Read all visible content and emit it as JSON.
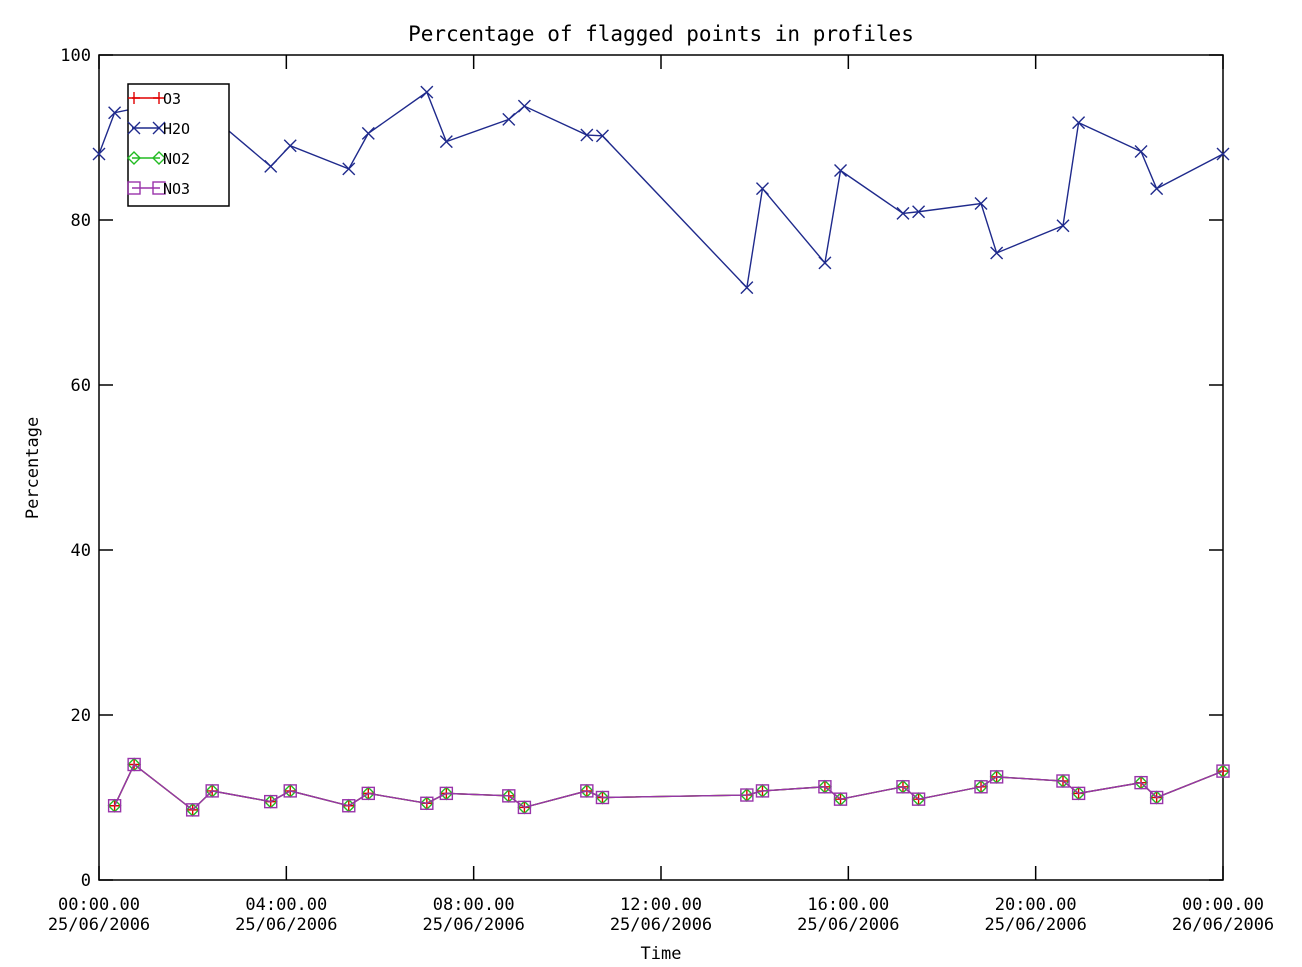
{
  "chart_data": {
    "type": "line",
    "title": "Percentage of flagged points in profiles",
    "xlabel": "Time",
    "ylabel": "Percentage",
    "xlim": [
      "2006-06-25T00:00",
      "2006-06-26T00:00"
    ],
    "ylim": [
      0,
      100
    ],
    "yticks": [
      0,
      20,
      40,
      60,
      80,
      100
    ],
    "xticks": [
      {
        "time": "00:00.00",
        "date": "25/06/2006",
        "value": "2006-06-25T00:00"
      },
      {
        "time": "04:00.00",
        "date": "25/06/2006",
        "value": "2006-06-25T04:00"
      },
      {
        "time": "08:00.00",
        "date": "25/06/2006",
        "value": "2006-06-25T08:00"
      },
      {
        "time": "12:00.00",
        "date": "25/06/2006",
        "value": "2006-06-25T12:00"
      },
      {
        "time": "16:00.00",
        "date": "25/06/2006",
        "value": "2006-06-25T16:00"
      },
      {
        "time": "20:00.00",
        "date": "25/06/2006",
        "value": "2006-06-25T20:00"
      },
      {
        "time": "00:00.00",
        "date": "26/06/2006",
        "value": "2006-06-26T00:00"
      }
    ],
    "grid": false,
    "legend_position": "top-left",
    "series": [
      {
        "name": "O3",
        "color": "#e00000",
        "marker": "plus",
        "x": [
          "2006-06-25T00:20",
          "2006-06-25T00:45",
          "2006-06-25T02:00",
          "2006-06-25T02:25",
          "2006-06-25T03:40",
          "2006-06-25T04:05",
          "2006-06-25T05:20",
          "2006-06-25T05:45",
          "2006-06-25T07:00",
          "2006-06-25T07:25",
          "2006-06-25T08:45",
          "2006-06-25T09:05",
          "2006-06-25T10:25",
          "2006-06-25T10:45",
          "2006-06-25T13:50",
          "2006-06-25T14:10",
          "2006-06-25T15:30",
          "2006-06-25T15:50",
          "2006-06-25T17:10",
          "2006-06-25T17:30",
          "2006-06-25T18:50",
          "2006-06-25T19:10",
          "2006-06-25T20:35",
          "2006-06-25T20:55",
          "2006-06-25T22:15",
          "2006-06-25T22:35",
          "2006-06-26T00:00"
        ],
        "y": [
          9.0,
          14.0,
          8.5,
          10.8,
          9.5,
          10.8,
          9.0,
          10.5,
          9.3,
          10.5,
          10.2,
          8.8,
          10.8,
          10.0,
          10.3,
          10.8,
          11.3,
          9.8,
          11.3,
          9.8,
          11.3,
          12.5,
          12.0,
          10.5,
          11.8,
          10.0,
          13.2
        ]
      },
      {
        "name": "H2O",
        "color": "#1f2a8c",
        "marker": "x",
        "x": [
          "2006-06-25T00:00",
          "2006-06-25T00:20",
          "2006-06-25T00:45",
          "2006-06-25T02:25",
          "2006-06-25T03:40",
          "2006-06-25T04:05",
          "2006-06-25T05:20",
          "2006-06-25T05:45",
          "2006-06-25T07:00",
          "2006-06-25T07:25",
          "2006-06-25T08:45",
          "2006-06-25T09:05",
          "2006-06-25T10:25",
          "2006-06-25T10:45",
          "2006-06-25T13:50",
          "2006-06-25T14:10",
          "2006-06-25T15:30",
          "2006-06-25T15:50",
          "2006-06-25T17:10",
          "2006-06-25T17:30",
          "2006-06-25T18:50",
          "2006-06-25T19:10",
          "2006-06-25T20:35",
          "2006-06-25T20:55",
          "2006-06-25T22:15",
          "2006-06-25T22:35",
          "2006-06-26T00:00"
        ],
        "y": [
          88.0,
          93.0,
          93.5,
          92.5,
          86.5,
          89.0,
          86.2,
          90.5,
          95.5,
          89.5,
          92.2,
          93.8,
          90.3,
          90.2,
          71.8,
          83.8,
          74.8,
          86.0,
          80.8,
          81.0,
          82.0,
          76.0,
          79.3,
          91.8,
          88.3,
          83.8,
          88.0
        ]
      },
      {
        "name": "NO2",
        "color": "#22bb22",
        "marker": "diamond",
        "x": [
          "2006-06-25T00:20",
          "2006-06-25T00:45",
          "2006-06-25T02:00",
          "2006-06-25T02:25",
          "2006-06-25T03:40",
          "2006-06-25T04:05",
          "2006-06-25T05:20",
          "2006-06-25T05:45",
          "2006-06-25T07:00",
          "2006-06-25T07:25",
          "2006-06-25T08:45",
          "2006-06-25T09:05",
          "2006-06-25T10:25",
          "2006-06-25T10:45",
          "2006-06-25T13:50",
          "2006-06-25T14:10",
          "2006-06-25T15:30",
          "2006-06-25T15:50",
          "2006-06-25T17:10",
          "2006-06-25T17:30",
          "2006-06-25T18:50",
          "2006-06-25T19:10",
          "2006-06-25T20:35",
          "2006-06-25T20:55",
          "2006-06-25T22:15",
          "2006-06-25T22:35",
          "2006-06-26T00:00"
        ],
        "y": [
          9.0,
          14.0,
          8.5,
          10.8,
          9.5,
          10.8,
          9.0,
          10.5,
          9.3,
          10.5,
          10.2,
          8.8,
          10.8,
          10.0,
          10.3,
          10.8,
          11.3,
          9.8,
          11.3,
          9.8,
          11.3,
          12.5,
          12.0,
          10.5,
          11.8,
          10.0,
          13.2
        ]
      },
      {
        "name": "NO3",
        "color": "#9933aa",
        "marker": "square",
        "x": [
          "2006-06-25T00:20",
          "2006-06-25T00:45",
          "2006-06-25T02:00",
          "2006-06-25T02:25",
          "2006-06-25T03:40",
          "2006-06-25T04:05",
          "2006-06-25T05:20",
          "2006-06-25T05:45",
          "2006-06-25T07:00",
          "2006-06-25T07:25",
          "2006-06-25T08:45",
          "2006-06-25T09:05",
          "2006-06-25T10:25",
          "2006-06-25T10:45",
          "2006-06-25T13:50",
          "2006-06-25T14:10",
          "2006-06-25T15:30",
          "2006-06-25T15:50",
          "2006-06-25T17:10",
          "2006-06-25T17:30",
          "2006-06-25T18:50",
          "2006-06-25T19:10",
          "2006-06-25T20:35",
          "2006-06-25T20:55",
          "2006-06-25T22:15",
          "2006-06-25T22:35",
          "2006-06-26T00:00"
        ],
        "y": [
          9.0,
          14.0,
          8.5,
          10.8,
          9.5,
          10.8,
          9.0,
          10.5,
          9.3,
          10.5,
          10.2,
          8.8,
          10.8,
          10.0,
          10.3,
          10.8,
          11.3,
          9.8,
          11.3,
          9.8,
          11.3,
          12.5,
          12.0,
          10.5,
          11.8,
          10.0,
          13.2
        ]
      }
    ]
  }
}
